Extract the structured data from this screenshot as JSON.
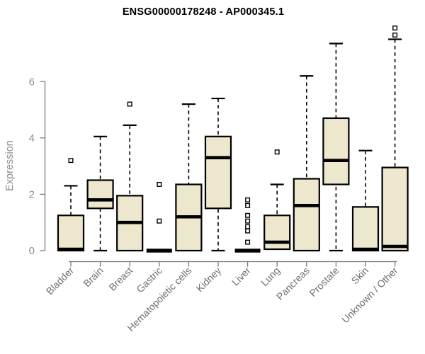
{
  "chart_data": {
    "type": "boxplot",
    "title": "ENSG00000178248 - AP000345.1",
    "ylabel": "Expression",
    "xlabel": "",
    "yticks": [
      0,
      2,
      4,
      6
    ],
    "ylim": [
      0,
      8
    ],
    "grid": false,
    "legend": "none",
    "categories": [
      "Bladder",
      "Brain",
      "Breast",
      "Gastric",
      "Hematopoietic cells",
      "Kidney",
      "Liver",
      "Lung",
      "Pancreas",
      "Prostate",
      "Skin",
      "Unknown / Other"
    ],
    "boxes": [
      {
        "category": "Bladder",
        "whisker_low": 0,
        "q1": 0,
        "median": 0.05,
        "q3": 1.25,
        "whisker_high": 2.3,
        "outliers": [
          3.2
        ],
        "draw_lower_whisker": false,
        "flat": false
      },
      {
        "category": "Brain",
        "whisker_low": 0,
        "q1": 1.5,
        "median": 1.8,
        "q3": 2.5,
        "whisker_high": 4.05,
        "outliers": [],
        "draw_lower_whisker": true,
        "flat": false
      },
      {
        "category": "Breast",
        "whisker_low": 0,
        "q1": 0,
        "median": 1.0,
        "q3": 1.95,
        "whisker_high": 4.45,
        "outliers": [
          5.2
        ],
        "draw_lower_whisker": false,
        "flat": false
      },
      {
        "category": "Gastric",
        "whisker_low": 0,
        "q1": 0,
        "median": 0,
        "q3": 0.05,
        "whisker_high": 0.05,
        "outliers": [
          1.05,
          2.35
        ],
        "draw_lower_whisker": false,
        "flat": true
      },
      {
        "category": "Hematopoietic cells",
        "whisker_low": 0,
        "q1": 0,
        "median": 1.2,
        "q3": 2.35,
        "whisker_high": 5.2,
        "outliers": [],
        "draw_lower_whisker": false,
        "flat": false
      },
      {
        "category": "Kidney",
        "whisker_low": 0,
        "q1": 1.5,
        "median": 3.3,
        "q3": 4.05,
        "whisker_high": 5.4,
        "outliers": [],
        "draw_lower_whisker": true,
        "flat": false
      },
      {
        "category": "Liver",
        "whisker_low": 0,
        "q1": 0,
        "median": 0,
        "q3": 0.05,
        "whisker_high": 0.05,
        "outliers": [
          0.3,
          0.7,
          0.85,
          1.05,
          1.25,
          1.6,
          1.8
        ],
        "draw_lower_whisker": false,
        "flat": true
      },
      {
        "category": "Lung",
        "whisker_low": 0.05,
        "q1": 0.05,
        "median": 0.3,
        "q3": 1.25,
        "whisker_high": 2.35,
        "outliers": [
          3.5
        ],
        "draw_lower_whisker": false,
        "flat": false
      },
      {
        "category": "Pancreas",
        "whisker_low": 0,
        "q1": 0,
        "median": 1.6,
        "q3": 2.55,
        "whisker_high": 6.2,
        "outliers": [],
        "draw_lower_whisker": false,
        "flat": false
      },
      {
        "category": "Prostate",
        "whisker_low": 0,
        "q1": 2.35,
        "median": 3.2,
        "q3": 4.7,
        "whisker_high": 7.35,
        "outliers": [],
        "draw_lower_whisker": true,
        "flat": false
      },
      {
        "category": "Skin",
        "whisker_low": 0,
        "q1": 0,
        "median": 0.05,
        "q3": 1.55,
        "whisker_high": 3.55,
        "outliers": [],
        "draw_lower_whisker": false,
        "flat": false
      },
      {
        "category": "Unknown / Other",
        "whisker_low": 0,
        "q1": 0,
        "median": 0.15,
        "q3": 2.95,
        "whisker_high": 7.5,
        "outliers": [
          7.65,
          7.9
        ],
        "draw_lower_whisker": false,
        "flat": false
      }
    ],
    "colors": {
      "box_fill": "#EDE7CE",
      "box_border": "#000000",
      "median": "#000000",
      "whisker": "#000000",
      "outlier_stroke": "#000000",
      "outlier_fill": "#FFFFFF",
      "axis": "#7A7A7A",
      "tick_label": "#8C8C94",
      "x_label": "#6F6F6F",
      "title": "#000000",
      "background": "#FFFFFF"
    }
  }
}
